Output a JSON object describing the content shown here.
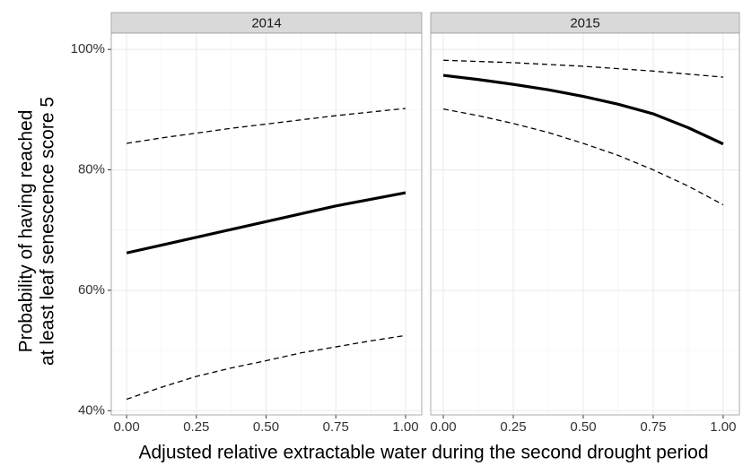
{
  "xlabel": "Adjusted relative extractable water during the second drought period",
  "ylabel": [
    "Probability of having reached",
    "at least leaf senescence score 5"
  ],
  "chart_data": [
    {
      "type": "line",
      "title": "2014",
      "x": [
        0,
        0.125,
        0.25,
        0.375,
        0.5,
        0.625,
        0.75,
        0.875,
        1
      ],
      "series": [
        {
          "color": "#000000",
          "dashed": false,
          "values": [
            66.2,
            67.5,
            68.8,
            70.1,
            71.4,
            72.7,
            74.0,
            75.1,
            76.2
          ]
        },
        {
          "color": "#000000",
          "dashed": true,
          "values": [
            84.4,
            85.3,
            86.1,
            86.9,
            87.6,
            88.3,
            89.0,
            89.6,
            90.2
          ]
        },
        {
          "color": "#000000",
          "dashed": true,
          "values": [
            41.9,
            43.9,
            45.7,
            47.1,
            48.3,
            49.6,
            50.6,
            51.6,
            52.5
          ]
        }
      ],
      "xlim": [
        -0.055,
        1.058
      ],
      "xticks": [
        {
          "value": 0,
          "label": "0.00"
        },
        {
          "value": 0.25,
          "label": "0.25"
        },
        {
          "value": 0.5,
          "label": "0.50"
        },
        {
          "value": 0.75,
          "label": "0.75"
        },
        {
          "value": 1,
          "label": "1.00"
        }
      ],
      "xminor": [
        0.125,
        0.375,
        0.625,
        0.875
      ],
      "ylim": [
        39.3,
        102.7
      ],
      "yticks": [
        {
          "value": 40,
          "label": "40%"
        },
        {
          "value": 60,
          "label": "60%"
        },
        {
          "value": 80,
          "label": "80%"
        },
        {
          "value": 100,
          "label": "100%"
        }
      ],
      "yminor": [
        50,
        70,
        90
      ],
      "grid": true
    },
    {
      "type": "line",
      "title": "2015",
      "x": [
        0,
        0.125,
        0.25,
        0.375,
        0.5,
        0.625,
        0.75,
        0.875,
        1
      ],
      "series": [
        {
          "color": "#000000",
          "dashed": false,
          "values": [
            95.7,
            95.0,
            94.2,
            93.3,
            92.2,
            90.9,
            89.3,
            87.0,
            84.3
          ]
        },
        {
          "color": "#000000",
          "dashed": true,
          "values": [
            98.2,
            98.0,
            97.8,
            97.5,
            97.2,
            96.8,
            96.4,
            95.9,
            95.4
          ]
        },
        {
          "color": "#000000",
          "dashed": true,
          "values": [
            90.1,
            89.0,
            87.7,
            86.2,
            84.4,
            82.4,
            80.0,
            77.3,
            74.2
          ]
        }
      ],
      "xlim": [
        -0.045,
        1.058
      ],
      "xticks": [
        {
          "value": 0,
          "label": "0.00"
        },
        {
          "value": 0.25,
          "label": "0.25"
        },
        {
          "value": 0.5,
          "label": "0.50"
        },
        {
          "value": 0.75,
          "label": "0.75"
        },
        {
          "value": 1,
          "label": "1.00"
        }
      ],
      "xminor": [
        0.125,
        0.375,
        0.625,
        0.875
      ],
      "ylim": [
        39.3,
        102.7
      ],
      "yticks": [
        40,
        60,
        80,
        100
      ],
      "yminor": [
        50,
        70,
        90
      ],
      "grid": true
    }
  ]
}
